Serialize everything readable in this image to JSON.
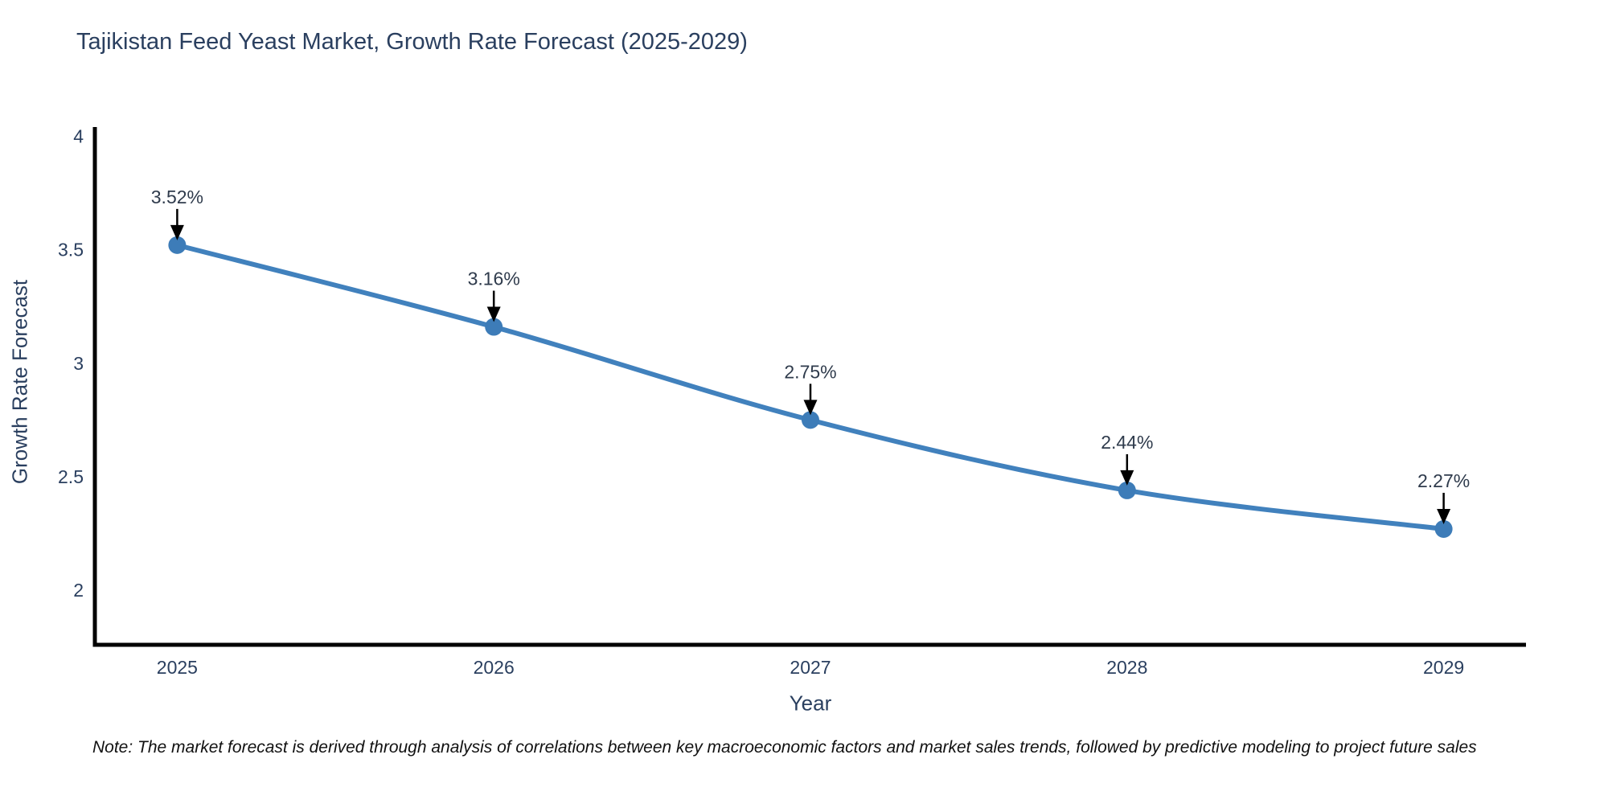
{
  "title": "Tajikistan Feed Yeast Market, Growth Rate Forecast (2025-2029)",
  "footnote": "Note: The market forecast is derived through analysis of correlations between key macroeconomic factors and market sales trends, followed by predictive modeling to project future sales",
  "chart_data": {
    "type": "line",
    "title": "Tajikistan Feed Yeast Market, Growth Rate Forecast (2025-2029)",
    "xlabel": "Year",
    "ylabel": "Growth Rate Forecast",
    "x": [
      2025,
      2026,
      2027,
      2028,
      2029
    ],
    "values": [
      3.52,
      3.16,
      2.75,
      2.44,
      2.27
    ],
    "point_labels": [
      "3.52%",
      "3.16%",
      "2.75%",
      "2.44%",
      "2.27%"
    ],
    "x_ticks": [
      "2025",
      "2026",
      "2027",
      "2028",
      "2029"
    ],
    "y_ticks": [
      2,
      2.5,
      3,
      3.5,
      4
    ],
    "xlim": [
      2024.74,
      2029.26
    ],
    "ylim": [
      1.76,
      4.04
    ],
    "grid": false,
    "legend": "none",
    "line_shape": "spline",
    "marker": "circle",
    "annotation_style": "value label with downward black arrow above each point"
  },
  "colors": {
    "line": "#4181bd",
    "marker": "#3d7cb8",
    "axis_line": "#000000",
    "tick_text": "#2a3f5f",
    "annotation_text": "#2f3b4c",
    "arrow": "#000000",
    "title_text": "#2a3f5f",
    "background": "#ffffff"
  }
}
